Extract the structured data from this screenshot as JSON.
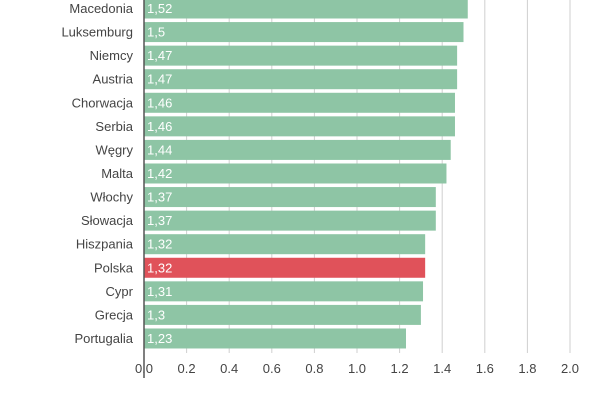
{
  "chart_data": {
    "type": "bar",
    "orientation": "horizontal",
    "categories": [
      "Macedonia",
      "Luksemburg",
      "Niemcy",
      "Austria",
      "Chorwacja",
      "Serbia",
      "Węgry",
      "Malta",
      "Włochy",
      "Słowacja",
      "Hiszpania",
      "Polska",
      "Cypr",
      "Grecja",
      "Portugalia"
    ],
    "values": [
      1.52,
      1.5,
      1.47,
      1.47,
      1.46,
      1.46,
      1.44,
      1.42,
      1.37,
      1.37,
      1.32,
      1.32,
      1.31,
      1.3,
      1.23
    ],
    "value_labels": [
      "1,52",
      "1,5",
      "1,47",
      "1,47",
      "1,46",
      "1,46",
      "1,44",
      "1,42",
      "1,37",
      "1,37",
      "1,32",
      "1,32",
      "1,31",
      "1,3",
      "1,23"
    ],
    "highlight": "Polska",
    "xlim": [
      0,
      2.0
    ],
    "ticks": [
      "0.0",
      "0.2",
      "0.4",
      "0.6",
      "0.8",
      "1.0",
      "1.2",
      "1.4",
      "1.6",
      "1.8",
      "2.0"
    ],
    "grid": true,
    "colors": {
      "bar": "#8ec5a5",
      "highlight": "#e0525a",
      "grid": "#cfcfcf",
      "axis": "#555555"
    }
  }
}
